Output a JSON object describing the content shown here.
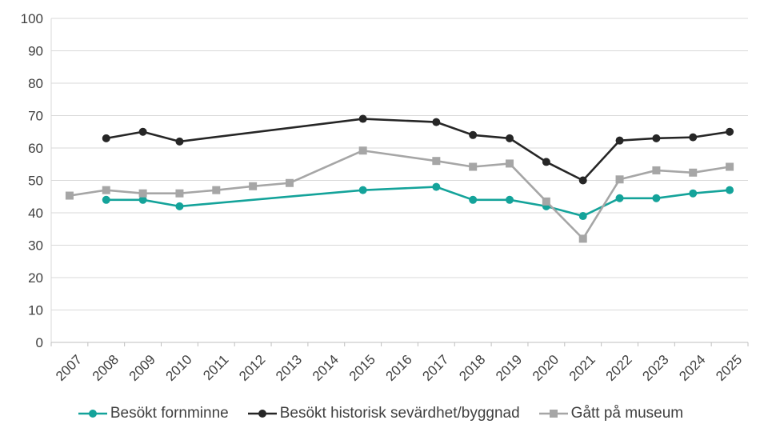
{
  "chart_data": {
    "type": "line",
    "title": "",
    "xlabel": "",
    "ylabel": "",
    "ylim": [
      0,
      100
    ],
    "yticks": [
      0,
      10,
      20,
      30,
      40,
      50,
      60,
      70,
      80,
      90,
      100
    ],
    "categories": [
      "2007",
      "2008",
      "2009",
      "2010",
      "2011",
      "2012",
      "2013",
      "2014",
      "2015",
      "2016",
      "2017",
      "2018",
      "2019",
      "2020",
      "2021",
      "2022",
      "2023",
      "2024",
      "2025"
    ],
    "grid": "horizontal",
    "legend_position": "bottom",
    "series": [
      {
        "name": "Besökt fornminne",
        "color": "#14a39a",
        "marker": "circle",
        "values": [
          null,
          44,
          44,
          42,
          null,
          null,
          null,
          null,
          47,
          null,
          48,
          44,
          44,
          42,
          39,
          44.5,
          44.5,
          46,
          47
        ]
      },
      {
        "name": "Besökt historisk sevärdhet/byggnad",
        "color": "#262626",
        "marker": "circle",
        "values": [
          null,
          63,
          65,
          62,
          null,
          null,
          null,
          null,
          69,
          null,
          68,
          64,
          63,
          55.7,
          50,
          62.3,
          63,
          63.3,
          65
        ]
      },
      {
        "name": "Gått på museum",
        "color": "#a6a6a6",
        "marker": "square",
        "values": [
          45.3,
          47,
          46,
          46,
          47,
          48.2,
          49.2,
          null,
          59.2,
          null,
          56,
          54.2,
          55.2,
          43.5,
          32,
          50.3,
          53.1,
          52.4,
          54.2
        ]
      }
    ]
  }
}
